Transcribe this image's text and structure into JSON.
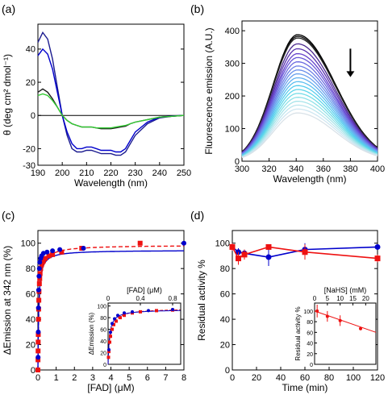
{
  "panels": {
    "a": {
      "label": "(a)"
    },
    "b": {
      "label": "(b)"
    },
    "c": {
      "label": "(c)"
    },
    "d": {
      "label": "(d)"
    }
  },
  "chart_data": [
    {
      "id": "a",
      "type": "line",
      "xlabel": "Wavelength (nm)",
      "ylabel": "θ (deg cm² dmol⁻¹)",
      "xlim": [
        190,
        250
      ],
      "ylim": [
        -30,
        55
      ],
      "xticks": [
        190,
        200,
        210,
        220,
        230,
        240,
        250
      ],
      "yticks": [
        -30,
        -20,
        0,
        20,
        40
      ],
      "colors": [
        "#1b1b8f",
        "#0000cc",
        "#1a1a1a",
        "#33cc33"
      ],
      "series": [
        {
          "x": [
            190,
            192,
            194,
            196,
            198,
            200,
            202,
            204,
            206,
            208,
            210,
            212,
            214,
            216,
            218,
            220,
            222,
            224,
            226,
            228,
            230,
            235,
            240,
            245,
            250
          ],
          "y": [
            44,
            50,
            46,
            34,
            17,
            0,
            -12,
            -20,
            -22,
            -22,
            -21,
            -21,
            -22,
            -23,
            -23,
            -23,
            -24,
            -24,
            -22,
            -17,
            -12,
            -5,
            -1.5,
            -0.5,
            0
          ]
        },
        {
          "x": [
            190,
            192,
            194,
            196,
            198,
            200,
            202,
            204,
            206,
            208,
            210,
            212,
            214,
            216,
            218,
            220,
            222,
            224,
            226,
            228,
            230,
            235,
            240,
            245,
            250
          ],
          "y": [
            36,
            40,
            37,
            28,
            14,
            0,
            -10,
            -17,
            -20,
            -20,
            -19,
            -19,
            -20,
            -21,
            -21,
            -21,
            -22,
            -22,
            -20,
            -15,
            -10,
            -4,
            -1,
            -0.3,
            0
          ]
        },
        {
          "x": [
            190,
            192,
            194,
            196,
            198,
            200,
            202,
            204,
            206,
            208,
            210,
            212,
            214,
            216,
            218,
            220,
            222,
            224,
            226,
            228,
            230,
            235,
            240,
            245,
            250
          ],
          "y": [
            14,
            16,
            14,
            10,
            5,
            0,
            -3,
            -5,
            -6,
            -7,
            -7,
            -7,
            -7.5,
            -8,
            -8,
            -8,
            -7.5,
            -7,
            -6.5,
            -5,
            -4,
            -2.5,
            -1,
            -0.5,
            0
          ]
        },
        {
          "x": [
            190,
            192,
            194,
            196,
            198,
            200,
            202,
            204,
            206,
            208,
            210,
            212,
            214,
            216,
            218,
            220,
            222,
            224,
            226,
            228,
            230,
            235,
            240,
            245,
            250
          ],
          "y": [
            12,
            13,
            12,
            9,
            5,
            0,
            -3,
            -5,
            -6,
            -7,
            -7,
            -7,
            -7.5,
            -7.5,
            -7.5,
            -7.5,
            -7,
            -6.5,
            -6,
            -5,
            -4,
            -2.5,
            -1,
            -0.5,
            0
          ]
        }
      ]
    },
    {
      "id": "b",
      "type": "line",
      "xlabel": "Wavelength (nm)",
      "ylabel": "Fluorescence emission (A.U.)",
      "xlim": [
        300,
        400
      ],
      "ylim": [
        0,
        430
      ],
      "xticks": [
        300,
        320,
        340,
        360,
        380,
        400
      ],
      "yticks": [
        0,
        100,
        200,
        300,
        400
      ],
      "peak_x": 341,
      "peaks": [
        388,
        383,
        378,
        360,
        345,
        330,
        318,
        305,
        292,
        280,
        268,
        256,
        244,
        232,
        220,
        208,
        196,
        184,
        172,
        160,
        148
      ],
      "colors": [
        "#000000",
        "#111111",
        "#222222",
        "#4b2a8f",
        "#5a34b0",
        "#6541cc",
        "#6a58d8",
        "#6b6be0",
        "#6c7ee6",
        "#6a8fea",
        "#6aa0ee",
        "#63b0f0",
        "#5cbff0",
        "#56cdee",
        "#5ed6ea",
        "#74dde8",
        "#8fe2e8",
        "#a7e4ea",
        "#bde6ee",
        "#cfe6f1",
        "#d9e2e8"
      ]
    },
    {
      "id": "c",
      "type": "scatter",
      "xlabel": "[FAD] (μM)",
      "ylabel": "ΔEmission at 342 nm (%)",
      "xlim": [
        0,
        8
      ],
      "ylim": [
        0,
        110
      ],
      "xticks": [
        0,
        1,
        2,
        3,
        4,
        5,
        6,
        7,
        8
      ],
      "yticks": [
        0,
        20,
        40,
        60,
        80,
        100
      ],
      "colors": [
        "#0000cc",
        "#ee1111"
      ],
      "series": [
        {
          "marker": "circle",
          "x": [
            0.01,
            0.02,
            0.03,
            0.04,
            0.06,
            0.08,
            0.1,
            0.15,
            0.2,
            0.3,
            0.5,
            0.8,
            1.2,
            2.5,
            8
          ],
          "y": [
            10,
            30,
            49,
            63,
            74,
            80,
            85,
            88,
            90,
            92,
            93,
            94,
            95,
            96,
            100
          ]
        },
        {
          "marker": "square",
          "x": [
            0,
            0.005,
            0.01,
            0.015,
            0.02,
            0.03,
            0.04,
            0.05,
            0.06,
            0.08,
            0.1,
            0.12,
            0.15,
            0.2,
            0.25,
            0.3,
            0.4,
            0.6,
            0.8,
            1.3,
            2.4,
            5.6
          ],
          "y": [
            0,
            8,
            15,
            22,
            28,
            40,
            48,
            55,
            62,
            68,
            72,
            76,
            80,
            83,
            85,
            86,
            88,
            90,
            91,
            93,
            96,
            100
          ]
        }
      ],
      "fit_blue": {
        "max": 94.5,
        "k": 0.045
      },
      "fit_red": {
        "max": 98.5,
        "k": 0.06
      },
      "inset": {
        "xlabel": "[FAD] (μM)",
        "ylabel": "ΔEmission (%)",
        "xlim": [
          0,
          0.9
        ],
        "ylim": [
          0,
          105
        ],
        "xticks": [
          0,
          0.4,
          0.8
        ],
        "yticks": [
          0,
          20,
          40,
          60,
          80,
          100
        ],
        "blue_x": [
          0.01,
          0.03,
          0.05,
          0.08,
          0.12,
          0.2,
          0.3,
          0.5,
          0.8
        ],
        "blue_y": [
          25,
          55,
          70,
          78,
          84,
          88,
          90,
          92,
          94
        ],
        "red_x": [
          0.005,
          0.01,
          0.02,
          0.03,
          0.05,
          0.07,
          0.1,
          0.15,
          0.2,
          0.3,
          0.4,
          0.6,
          0.8
        ],
        "red_y": [
          12,
          22,
          38,
          48,
          60,
          68,
          74,
          80,
          84,
          88,
          90,
          92,
          93
        ]
      }
    },
    {
      "id": "d",
      "type": "line",
      "xlabel": "Time (min)",
      "ylabel": "Residual activity %",
      "xlim": [
        0,
        120
      ],
      "ylim": [
        0,
        110
      ],
      "xticks": [
        0,
        20,
        40,
        60,
        80,
        100,
        120
      ],
      "yticks": [
        0,
        20,
        40,
        60,
        80,
        100
      ],
      "colors": [
        "#0000cc",
        "#ee1111"
      ],
      "series": [
        {
          "marker": "circle",
          "x": [
            0,
            5,
            10,
            30,
            60,
            120
          ],
          "y": [
            97,
            93,
            92,
            89,
            95,
            97
          ],
          "err": [
            3,
            3,
            3,
            7,
            5,
            2
          ]
        },
        {
          "marker": "square",
          "x": [
            0,
            5,
            10,
            30,
            60,
            120
          ],
          "y": [
            97,
            88,
            91,
            97,
            93,
            88
          ],
          "err": [
            3,
            5,
            4,
            2,
            6,
            3
          ]
        }
      ],
      "inset": {
        "xlabel": "[NaHS] (mM)",
        "ylabel": "Residual activity %",
        "xlim": [
          0,
          24
        ],
        "ylim": [
          0,
          115
        ],
        "xticks": [
          0,
          5,
          10,
          15,
          20
        ],
        "yticks": [
          0,
          20,
          40,
          60,
          80,
          100
        ],
        "x": [
          1,
          5,
          10,
          18
        ],
        "y": [
          100,
          90,
          82,
          67
        ],
        "err": [
          12,
          10,
          10,
          3
        ],
        "fit": [
          [
            0,
            100
          ],
          [
            24,
            60
          ]
        ]
      }
    }
  ],
  "annotations": {
    "b_arrow": "decreasing-arrow"
  }
}
